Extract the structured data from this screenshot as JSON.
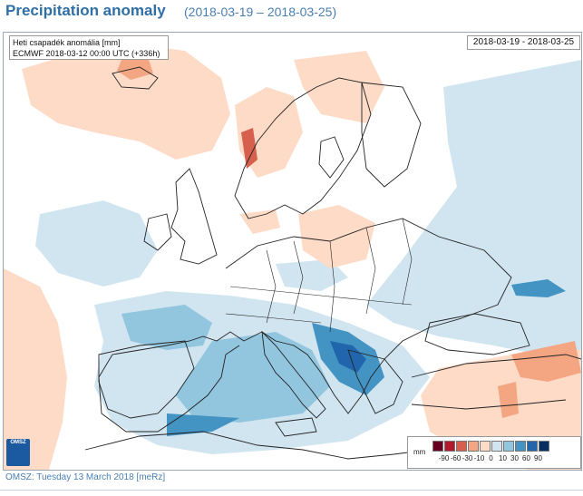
{
  "header": {
    "title": "Precipitation anomaly",
    "date_range": "(2018-03-19 – 2018-03-25)"
  },
  "map": {
    "info_line1": "Heti csapadék anomália [mm]",
    "info_line2": "ECMWF 2018-03-12 00:00 UTC (+336h)",
    "date_box": "2018-03-19 - 2018-03-25",
    "logo_text": "OMSZ",
    "colors": {
      "water": "#ffffff",
      "land_neutral": "#ffffff",
      "coast": "#222222"
    }
  },
  "legend": {
    "unit": "mm",
    "labels": [
      "-90",
      "-60",
      "-30",
      "-10",
      "0",
      "10",
      "30",
      "60",
      "90"
    ],
    "colors": [
      "#67001f",
      "#b2182b",
      "#d6604d",
      "#f4a582",
      "#fddbc7",
      "#d1e5f0",
      "#92c5de",
      "#4393c3",
      "#2166ac",
      "#053061"
    ]
  },
  "footer": {
    "text": "OMSZ: Tuesday 13 March 2018  [meRz]"
  }
}
